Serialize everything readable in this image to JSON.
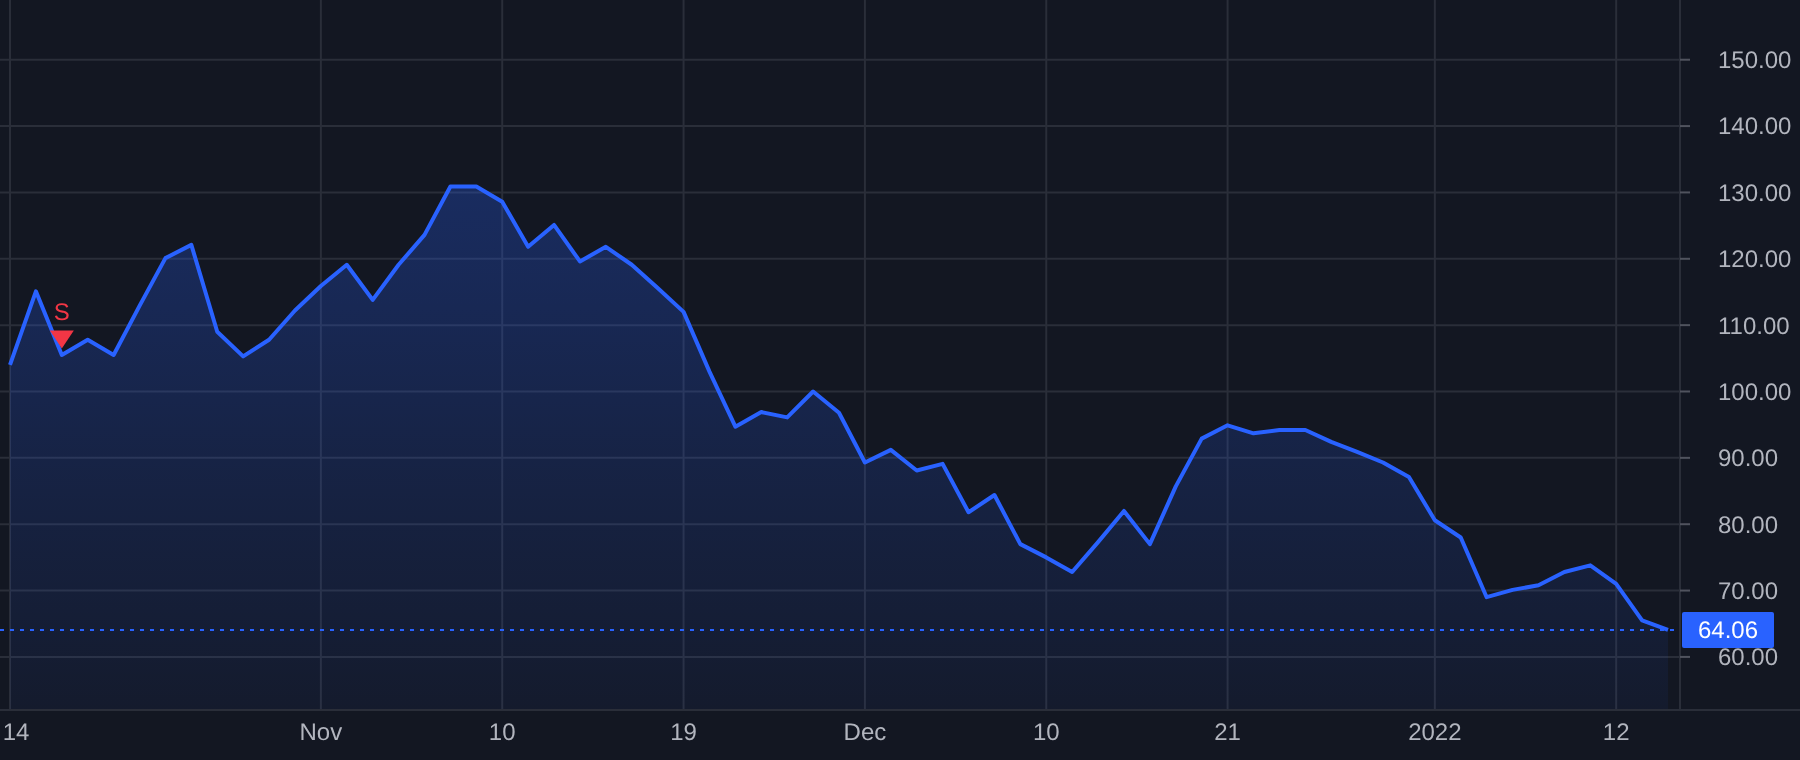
{
  "chart_data": {
    "type": "area",
    "categories": [
      "14",
      null,
      null,
      null,
      null,
      null,
      null,
      null,
      null,
      null,
      null,
      null,
      "Nov",
      null,
      null,
      null,
      null,
      null,
      null,
      "10",
      null,
      null,
      null,
      null,
      null,
      null,
      "19",
      null,
      null,
      null,
      null,
      null,
      null,
      "Dec",
      null,
      null,
      null,
      null,
      null,
      null,
      "10",
      null,
      null,
      null,
      null,
      null,
      null,
      "21",
      null,
      null,
      null,
      null,
      null,
      null,
      null,
      "2022",
      null,
      null,
      null,
      null,
      null,
      null,
      "12",
      null,
      null
    ],
    "series": [
      {
        "color": "#2962ff",
        "values": [
          104.0,
          115.1,
          105.5,
          107.8,
          105.5,
          112.9,
          120.1,
          122.1,
          109.0,
          105.3,
          107.8,
          112.2,
          115.9,
          119.1,
          113.8,
          119.1,
          123.6,
          130.9,
          130.9,
          128.6,
          121.8,
          125.1,
          119.6,
          121.8,
          119.1,
          115.6,
          112.0,
          103.0,
          94.7,
          96.9,
          96.1,
          100.0,
          96.8,
          89.3,
          91.2,
          88.1,
          89.1,
          81.8,
          84.4,
          77.0,
          75.0,
          72.8,
          77.3,
          82.0,
          77.0,
          85.7,
          92.9,
          94.9,
          93.7,
          94.2,
          94.2,
          92.4,
          90.9,
          89.3,
          87.1,
          80.6,
          78.0,
          69.0,
          70.1,
          70.8,
          72.8,
          73.8,
          71.0,
          65.5,
          64.06
        ]
      },
      {
        "type": "scatter",
        "name": "S",
        "color": "#f23645",
        "marker": "triangle",
        "values": [
          null,
          null,
          108,
          null,
          null,
          null,
          null,
          null,
          null,
          null,
          null,
          null,
          null,
          null,
          null,
          null,
          null,
          null,
          null,
          null,
          null,
          null,
          null,
          null,
          null,
          null,
          null,
          null,
          null,
          null,
          null,
          null,
          null,
          null,
          null,
          null,
          null,
          null,
          null,
          null,
          null,
          null,
          null,
          null,
          null,
          null,
          null,
          null,
          null,
          null,
          null,
          null,
          null,
          null,
          null,
          null,
          null,
          null,
          null,
          null,
          null,
          null,
          null,
          null,
          null
        ]
      }
    ],
    "ylim": [
      52,
      159
    ],
    "yticks": [
      {
        "value": 60,
        "label": "60.00"
      },
      {
        "value": 70,
        "label": "70.00"
      },
      {
        "value": 80,
        "label": "80.00"
      },
      {
        "value": 90,
        "label": "90.00"
      },
      {
        "value": 100,
        "label": "100.00"
      },
      {
        "value": 110,
        "label": "110.00"
      },
      {
        "value": 120,
        "label": "120.00"
      },
      {
        "value": 130,
        "label": "130.00"
      },
      {
        "value": 140,
        "label": "140.00"
      },
      {
        "value": 150,
        "label": "150.00"
      }
    ],
    "ref_lines": [
      {
        "axis": "y",
        "value": 64.06,
        "label": "64.06",
        "color": "#2962ff",
        "line_style": "dotted"
      }
    ],
    "grid": true,
    "legend": false
  }
}
